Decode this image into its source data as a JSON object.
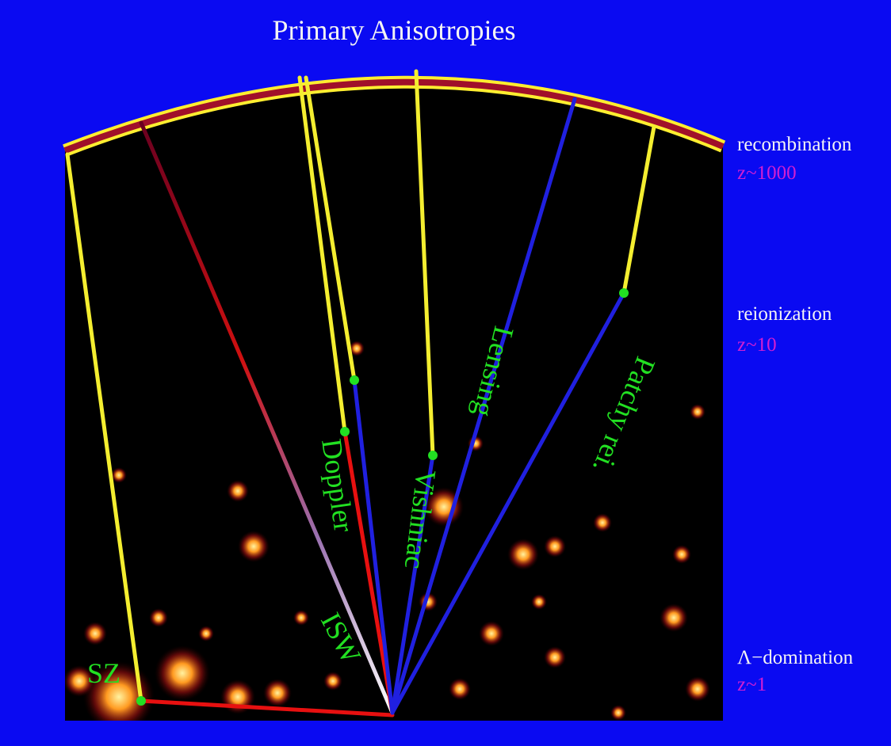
{
  "title": "Primary Anisotropies",
  "epochs": [
    {
      "label": "recombination",
      "redshift": "z~1000"
    },
    {
      "label": "reionization",
      "redshift": "z~10"
    },
    {
      "label": "Λ−domination",
      "redshift": "z~1"
    }
  ],
  "effects": [
    "SZ",
    "ISW",
    "Doppler",
    "Vishniac",
    "Lensing",
    "Patchy rei."
  ]
}
